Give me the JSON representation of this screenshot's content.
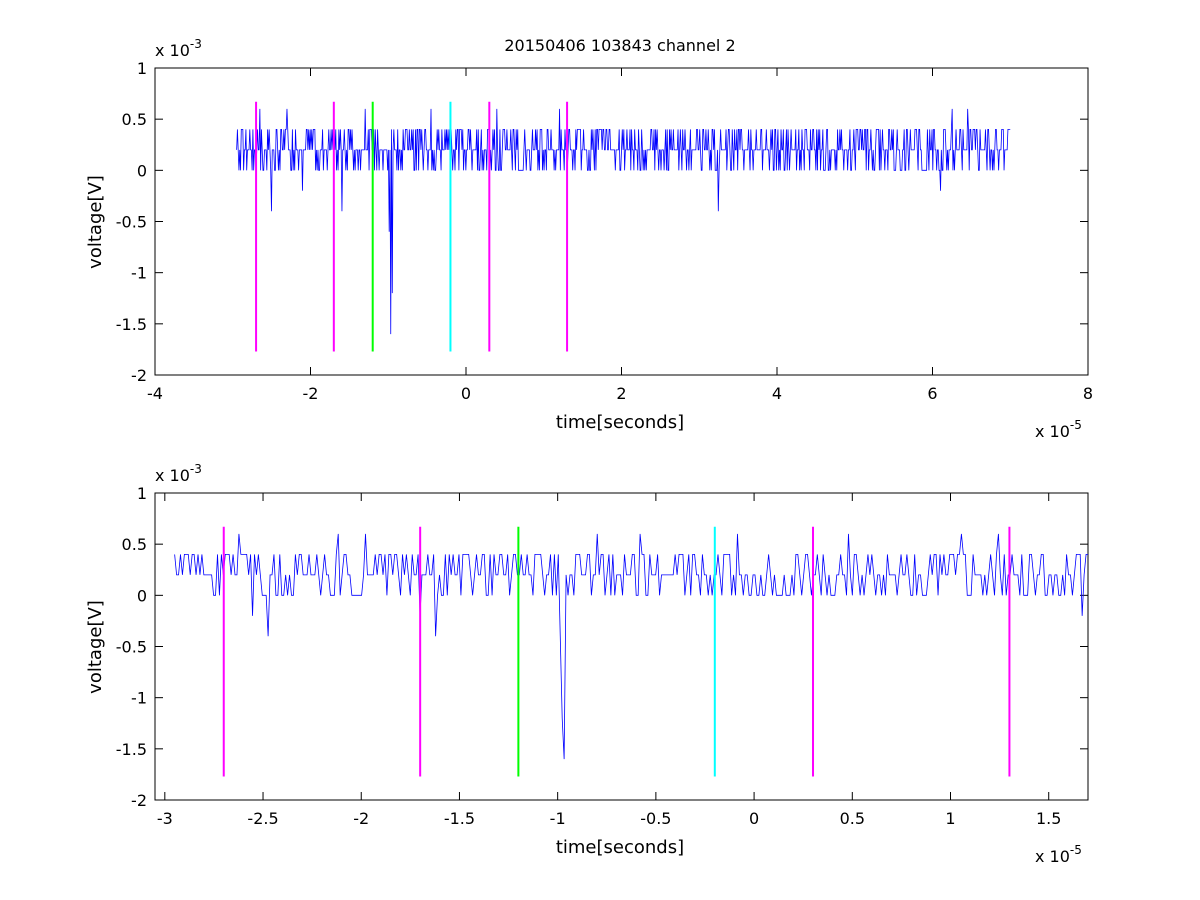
{
  "figure_title": "20150406 103843 channel 2",
  "chart_data": [
    {
      "type": "line",
      "title": "20150406 103843 channel 2",
      "xlabel": "time[seconds]",
      "ylabel": "voltage[V]",
      "x_exponent_label": "x 10",
      "x_exponent": "-5",
      "y_exponent_label": "x 10",
      "y_exponent": "-3",
      "x_scale": 1e-05,
      "y_scale": 0.001,
      "xlim": [
        -4e-05,
        8e-05
      ],
      "ylim": [
        -0.002,
        0.001
      ],
      "xticks": [
        -4e-05,
        -2e-05,
        0,
        2e-05,
        4e-05,
        6e-05,
        8e-05
      ],
      "xtick_labels": [
        "-4",
        "-2",
        "0",
        "2",
        "4",
        "6",
        "8"
      ],
      "yticks": [
        -0.002,
        -0.0015,
        -0.001,
        -0.0005,
        0,
        0.0005,
        0.001
      ],
      "ytick_labels": [
        "-2",
        "-1.5",
        "-1",
        "-0.5",
        "0",
        "0.5",
        "1"
      ],
      "grid": false,
      "legend": "none",
      "signal": {
        "color": "#0000ff",
        "x_start": -2.95e-05,
        "x_end": 7e-05,
        "n_points": 1000,
        "quantum": 0.0002,
        "baseline": 0.0002,
        "low": 0.0,
        "high": 0.0004,
        "spikes": [
          {
            "x": -2.65e-05,
            "y": 0.0006
          },
          {
            "x": -2.5e-05,
            "y": -0.0004
          },
          {
            "x": -2.3e-05,
            "y": 0.0006
          },
          {
            "x": -2.1e-05,
            "y": -0.0002
          },
          {
            "x": -1.6e-05,
            "y": -0.0004
          },
          {
            "x": -1.3e-05,
            "y": 0.0006
          },
          {
            "x": -9.9e-06,
            "y": -0.0006
          },
          {
            "x": -9.7e-06,
            "y": -0.0016
          },
          {
            "x": -9.5e-06,
            "y": -0.0012
          },
          {
            "x": -4.5e-06,
            "y": 0.0006
          },
          {
            "x": 4e-06,
            "y": 0.0006
          },
          {
            "x": 1.2e-05,
            "y": 0.0006
          },
          {
            "x": 3.25e-05,
            "y": -0.0004
          },
          {
            "x": 6.25e-05,
            "y": 0.0006
          },
          {
            "x": 6.45e-05,
            "y": 0.0006
          },
          {
            "x": 6.1e-05,
            "y": -0.0002
          }
        ]
      },
      "markers": [
        {
          "x": -2.7e-05,
          "color": "#ff00ff"
        },
        {
          "x": -1.7e-05,
          "color": "#ff00ff"
        },
        {
          "x": -1.2e-05,
          "color": "#00ff00"
        },
        {
          "x": -2e-06,
          "color": "#00ffff"
        },
        {
          "x": 3e-06,
          "color": "#ff00ff"
        },
        {
          "x": 1.3e-05,
          "color": "#ff00ff"
        }
      ],
      "marker_ylim": [
        -0.00177,
        0.00067
      ]
    },
    {
      "type": "line",
      "title": "",
      "xlabel": "time[seconds]",
      "ylabel": "voltage[V]",
      "x_exponent_label": "x 10",
      "x_exponent": "-5",
      "y_exponent_label": "x 10",
      "y_exponent": "-3",
      "x_scale": 1e-05,
      "y_scale": 0.001,
      "xlim": [
        -3.05e-05,
        1.7e-05
      ],
      "ylim": [
        -0.002,
        0.001
      ],
      "xticks": [
        -3e-05,
        -2.5e-05,
        -2e-05,
        -1.5e-05,
        -1e-05,
        -5e-06,
        0,
        5e-06,
        1e-05,
        1.5e-05
      ],
      "xtick_labels": [
        "-3",
        "-2.5",
        "-2",
        "-1.5",
        "-1",
        "-0.5",
        "0",
        "0.5",
        "1",
        "1.5"
      ],
      "yticks": [
        -0.002,
        -0.0015,
        -0.001,
        -0.0005,
        0,
        0.0005,
        0.001
      ],
      "ytick_labels": [
        "-2",
        "-1.5",
        "-1",
        "-0.5",
        "0",
        "0.5",
        "1"
      ],
      "grid": false,
      "legend": "none",
      "signal": {
        "color": "#0000ff",
        "x_start": -2.95e-05,
        "x_end": 1.7e-05,
        "n_points": 470,
        "quantum": 0.0002,
        "baseline": 0.0002,
        "low": 0.0,
        "high": 0.0004,
        "spikes": [
          {
            "x": -2.62e-05,
            "y": 0.0006
          },
          {
            "x": -2.55e-05,
            "y": -0.0002
          },
          {
            "x": -2.47e-05,
            "y": -0.0004
          },
          {
            "x": -2.12e-05,
            "y": 0.0006
          },
          {
            "x": -1.98e-05,
            "y": 0.0006
          },
          {
            "x": -1.7e-05,
            "y": -0.0002
          },
          {
            "x": -1.62e-05,
            "y": -0.0004
          },
          {
            "x": -9.9e-06,
            "y": -0.0004
          },
          {
            "x": -9.8e-06,
            "y": -0.0012
          },
          {
            "x": -9.7e-06,
            "y": -0.0016
          },
          {
            "x": -8e-06,
            "y": 0.0006
          },
          {
            "x": -5.8e-06,
            "y": 0.0006
          },
          {
            "x": -8e-07,
            "y": 0.0006
          },
          {
            "x": 4.8e-06,
            "y": 0.0006
          },
          {
            "x": 1.06e-05,
            "y": 0.0006
          },
          {
            "x": 1.24e-05,
            "y": 0.0006
          },
          {
            "x": 1.67e-05,
            "y": -0.0002
          }
        ]
      },
      "markers": [
        {
          "x": -2.7e-05,
          "color": "#ff00ff"
        },
        {
          "x": -1.7e-05,
          "color": "#ff00ff"
        },
        {
          "x": -1.2e-05,
          "color": "#00ff00"
        },
        {
          "x": -2e-06,
          "color": "#00ffff"
        },
        {
          "x": 3e-06,
          "color": "#ff00ff"
        },
        {
          "x": 1.3e-05,
          "color": "#ff00ff"
        }
      ],
      "marker_ylim": [
        -0.00177,
        0.00067
      ]
    }
  ]
}
